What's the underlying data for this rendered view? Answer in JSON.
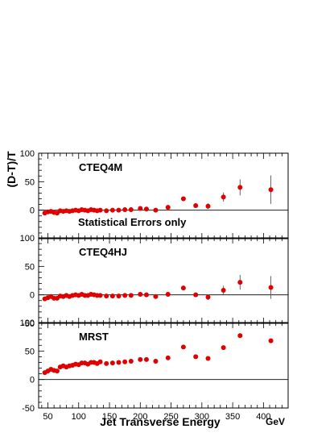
{
  "chart_data": {
    "type": "scatter",
    "xlabel": "Jet Transverse Energy",
    "x_unit": "GeV",
    "ylabel": "(D-T)/T",
    "xlim": [
      35,
      440
    ],
    "x_ticks": [
      50,
      100,
      150,
      200,
      250,
      300,
      350,
      400
    ],
    "ylim": [
      -50,
      100
    ],
    "y_ticks": [
      -50,
      0,
      50,
      100
    ],
    "grid": false,
    "zero_line": true,
    "marker_color": "#e00000",
    "note": "Statistical Errors only",
    "x": [
      45,
      50,
      55,
      60,
      65,
      70,
      75,
      80,
      85,
      90,
      95,
      100,
      105,
      110,
      115,
      120,
      125,
      130,
      135,
      145,
      155,
      165,
      175,
      185,
      200,
      210,
      225,
      245,
      270,
      290,
      310,
      335,
      362,
      412
    ],
    "panels": [
      {
        "name": "CTEQ4M",
        "values": [
          -5,
          -3,
          -2,
          -4,
          -5,
          -1,
          -2,
          -1,
          -2,
          -1,
          0,
          -1,
          1,
          0,
          -1,
          1,
          0,
          -1,
          0,
          -1,
          0,
          0,
          1,
          1,
          3,
          2,
          0,
          5,
          20,
          8,
          7,
          23,
          40,
          36
        ],
        "errors": [
          0,
          0,
          0,
          0,
          0,
          0,
          0,
          0,
          0,
          0,
          0,
          0,
          0,
          0,
          0,
          0,
          0,
          0,
          0,
          0,
          0,
          0,
          0,
          0,
          0,
          0,
          0,
          0,
          3,
          4,
          5,
          8,
          14,
          25
        ]
      },
      {
        "name": "CTEQ4HJ",
        "values": [
          -7,
          -5,
          -3,
          -6,
          -6,
          -2,
          -3,
          -1,
          -3,
          -1,
          0,
          -1,
          1,
          -1,
          -1,
          1,
          0,
          -1,
          -1,
          -2,
          -2,
          -2,
          -1,
          -1,
          1,
          0,
          -3,
          1,
          12,
          0,
          -4,
          8,
          22,
          13
        ],
        "errors": [
          0,
          0,
          0,
          0,
          0,
          0,
          0,
          0,
          0,
          0,
          0,
          0,
          0,
          0,
          0,
          0,
          0,
          0,
          0,
          0,
          0,
          0,
          0,
          0,
          0,
          0,
          0,
          0,
          3,
          4,
          5,
          8,
          13,
          20
        ]
      },
      {
        "name": "MRST",
        "values": [
          12,
          15,
          18,
          16,
          15,
          22,
          24,
          22,
          24,
          25,
          27,
          26,
          29,
          29,
          27,
          30,
          30,
          28,
          31,
          28,
          29,
          30,
          31,
          32,
          35,
          35,
          32,
          38,
          57,
          40,
          37,
          56,
          77,
          68
        ]
      }
    ]
  }
}
